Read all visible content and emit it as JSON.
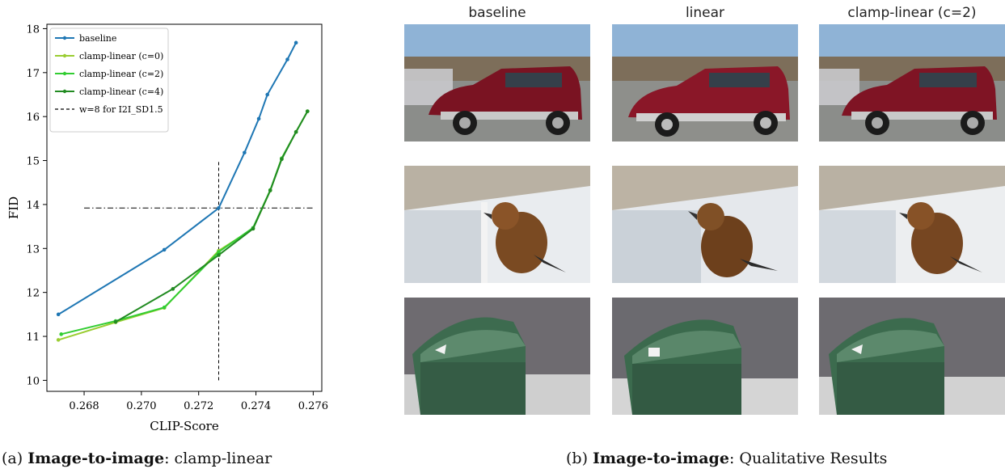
{
  "chart_data": {
    "type": "line",
    "xlabel": "CLIP-Score",
    "ylabel": "FID",
    "xlim": [
      0.2667,
      0.2763
    ],
    "ylim": [
      9.75,
      18.1
    ],
    "xticks": [
      "0.268",
      "0.270",
      "0.272",
      "0.274",
      "0.276"
    ],
    "xtick_values": [
      0.268,
      0.27,
      0.272,
      0.274,
      0.276
    ],
    "yticks": [
      "10",
      "11",
      "12",
      "13",
      "14",
      "15",
      "16",
      "17",
      "18"
    ],
    "ytick_values": [
      10,
      11,
      12,
      13,
      14,
      15,
      16,
      17,
      18
    ],
    "legend_position": "top-left",
    "series": [
      {
        "name": "baseline",
        "color": "#1f77b4",
        "x": [
          0.2671,
          0.2708,
          0.2727,
          0.2736,
          0.2741,
          0.2744,
          0.2751,
          0.2754
        ],
        "y": [
          11.5,
          12.97,
          13.92,
          15.18,
          15.95,
          16.5,
          17.3,
          17.68
        ]
      },
      {
        "name": "clamp-linear (c=0)",
        "color": "#9acd32",
        "x": [
          0.2671,
          0.2691,
          0.2708,
          0.2727,
          0.2739,
          0.2745,
          0.2749,
          0.2754,
          0.2758
        ],
        "y": [
          10.92,
          11.32,
          11.65,
          12.95,
          13.45,
          14.32,
          15.05,
          15.65,
          16.12
        ]
      },
      {
        "name": "clamp-linear (c=2)",
        "color": "#32cd32",
        "x": [
          0.2672,
          0.2691,
          0.2708,
          0.2727,
          0.2739,
          0.2745,
          0.2749,
          0.2754,
          0.2758
        ],
        "y": [
          11.05,
          11.35,
          11.66,
          12.92,
          13.47,
          14.33,
          15.05,
          15.65,
          16.12
        ]
      },
      {
        "name": "clamp-linear (c=4)",
        "color": "#228b22",
        "x": [
          0.2691,
          0.2711,
          0.2727,
          0.2739,
          0.2745,
          0.2749,
          0.2754,
          0.2758
        ],
        "y": [
          11.33,
          12.08,
          12.85,
          13.45,
          14.32,
          15.03,
          15.65,
          16.12
        ]
      }
    ],
    "reference_lines": [
      {
        "name": "w=8 for I2I_SD1.5",
        "style": "dashed",
        "orientation": "vertical",
        "x": 0.2727,
        "y_range": [
          10.0,
          15.0
        ]
      },
      {
        "name": "",
        "style": "dashdot",
        "orientation": "horizontal",
        "y": 13.92,
        "x_range": [
          0.268,
          0.276
        ]
      }
    ]
  },
  "captions": {
    "left_prefix": "(a) ",
    "left_bold": "Image-to-image",
    "left_rest": ": clamp-linear",
    "right_prefix": "(b) ",
    "right_bold": "Image-to-image",
    "right_rest": ": Qualitative Results"
  },
  "grid": {
    "columns": [
      "baseline",
      "linear",
      "clamp-linear (c=2)"
    ],
    "rows": [
      "car",
      "bird",
      "mailbox"
    ]
  }
}
